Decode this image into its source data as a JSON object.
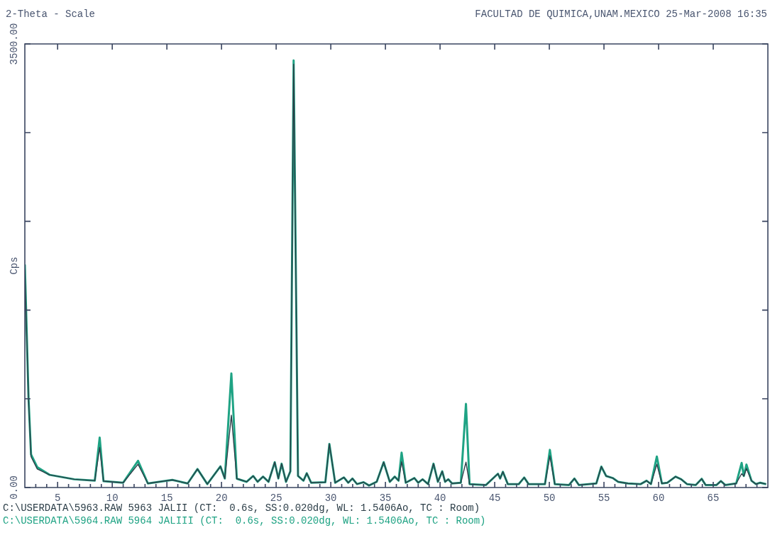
{
  "chart_data": {
    "type": "line",
    "title": "FACULTAD DE QUIMICA,UNAM.MEXICO 25-Mar-2008 16:35",
    "xlabel": "2-Theta - Scale",
    "ylabel": "Cps",
    "x": [
      2.0,
      2.34,
      2.57,
      3.14,
      4.27,
      6.52,
      8.4,
      8.85,
      9.2,
      11.0,
      12.36,
      13.26,
      15.5,
      16.9,
      17.8,
      18.7,
      19.9,
      20.3,
      20.9,
      21.4,
      22.3,
      22.9,
      23.3,
      23.8,
      24.3,
      24.87,
      25.2,
      25.5,
      25.9,
      26.3,
      26.6,
      27.0,
      27.5,
      27.8,
      28.2,
      29.5,
      29.87,
      30.4,
      31.2,
      31.6,
      31.98,
      32.4,
      33.0,
      33.5,
      34.2,
      34.84,
      35.4,
      35.85,
      36.2,
      36.48,
      36.86,
      37.65,
      38.0,
      38.4,
      38.9,
      39.4,
      39.8,
      40.2,
      40.46,
      40.75,
      41.1,
      41.9,
      42.37,
      42.7,
      44.2,
      45.3,
      45.5,
      45.75,
      46.2,
      47.2,
      47.7,
      48.1,
      49.6,
      50.05,
      50.5,
      51.8,
      52.3,
      52.7,
      54.3,
      54.76,
      55.2,
      55.8,
      56.3,
      57.2,
      58.36,
      58.9,
      59.3,
      59.84,
      60.3,
      60.8,
      61.55,
      62.07,
      62.6,
      63.4,
      63.94,
      64.3,
      65.3,
      65.7,
      66.1,
      67.1,
      67.6,
      67.8,
      68.04,
      68.5,
      68.9,
      69.3,
      69.84
    ],
    "series": [
      {
        "name": "C:\\USERDATA\\5963.RAW 5963 JALII (CT:  0.6s, SS:0.020dg, WL: 1.5406Ao, TC : Room)",
        "color": "#2c3e48",
        "values": [
          1720,
          690,
          243,
          146,
          100,
          65,
          54,
          316,
          50,
          38,
          184,
          32,
          60,
          32,
          146,
          27,
          167,
          71,
          570,
          70,
          45,
          91,
          45,
          86,
          45,
          200,
          71,
          188,
          45,
          128,
          3340,
          91,
          54,
          113,
          38,
          42,
          344,
          38,
          80,
          38,
          71,
          27,
          42,
          16,
          45,
          200,
          45,
          86,
          54,
          203,
          38,
          75,
          38,
          65,
          27,
          188,
          45,
          128,
          45,
          65,
          32,
          38,
          200,
          27,
          20,
          109,
          71,
          124,
          27,
          27,
          79,
          27,
          27,
          250,
          27,
          20,
          71,
          20,
          32,
          165,
          91,
          75,
          45,
          32,
          27,
          54,
          27,
          184,
          32,
          38,
          86,
          65,
          27,
          20,
          69,
          20,
          20,
          51,
          20,
          32,
          109,
          91,
          150,
          54,
          27,
          38,
          27
        ]
      },
      {
        "name": "C:\\USERDATA\\5964.RAW 5964 JALIII (CT:  0.6s, SS:0.020dg, WL: 1.5406Ao, TC : Room)",
        "color": "#1fa384",
        "values": [
          1760,
          700,
          260,
          160,
          100,
          65,
          54,
          394,
          50,
          38,
          211,
          32,
          60,
          32,
          146,
          27,
          167,
          71,
          900,
          70,
          45,
          91,
          45,
          86,
          45,
          200,
          71,
          188,
          45,
          128,
          3370,
          91,
          54,
          113,
          38,
          42,
          344,
          38,
          80,
          38,
          71,
          27,
          42,
          16,
          45,
          200,
          45,
          86,
          54,
          275,
          38,
          75,
          38,
          65,
          27,
          188,
          45,
          128,
          45,
          65,
          32,
          38,
          660,
          27,
          20,
          109,
          71,
          124,
          27,
          27,
          79,
          27,
          27,
          297,
          27,
          20,
          71,
          20,
          32,
          165,
          91,
          75,
          45,
          32,
          27,
          54,
          27,
          245,
          32,
          38,
          86,
          65,
          27,
          20,
          69,
          20,
          20,
          51,
          20,
          32,
          194,
          91,
          181,
          54,
          27,
          38,
          27
        ]
      }
    ],
    "xlim": [
      2,
      70
    ],
    "ylim": [
      0,
      3500
    ],
    "xticks": [
      {
        "value": 3,
        "label": null
      },
      {
        "value": 4,
        "label": null
      },
      5,
      {
        "value": 6,
        "label": null
      },
      {
        "value": 7,
        "label": null
      },
      {
        "value": 8,
        "label": null
      },
      {
        "value": 9,
        "label": null
      },
      10,
      {
        "value": 11,
        "label": null
      },
      {
        "value": 12,
        "label": null
      },
      {
        "value": 13,
        "label": null
      },
      {
        "value": 14,
        "label": null
      },
      15,
      {
        "value": 16,
        "label": null
      },
      {
        "value": 17,
        "label": null
      },
      {
        "value": 18,
        "label": null
      },
      {
        "value": 19,
        "label": null
      },
      20,
      {
        "value": 21,
        "label": null
      },
      {
        "value": 22,
        "label": null
      },
      {
        "value": 23,
        "label": null
      },
      {
        "value": 24,
        "label": null
      },
      25,
      {
        "value": 26,
        "label": null
      },
      {
        "value": 27,
        "label": null
      },
      {
        "value": 28,
        "label": null
      },
      {
        "value": 29,
        "label": null
      },
      30,
      {
        "value": 31,
        "label": null
      },
      {
        "value": 32,
        "label": null
      },
      {
        "value": 33,
        "label": null
      },
      {
        "value": 34,
        "label": null
      },
      35,
      {
        "value": 36,
        "label": null
      },
      {
        "value": 37,
        "label": null
      },
      {
        "value": 38,
        "label": null
      },
      {
        "value": 39,
        "label": null
      },
      40,
      {
        "value": 41,
        "label": null
      },
      {
        "value": 42,
        "label": null
      },
      {
        "value": 43,
        "label": null
      },
      {
        "value": 44,
        "label": null
      },
      45,
      {
        "value": 46,
        "label": null
      },
      {
        "value": 47,
        "label": null
      },
      {
        "value": 48,
        "label": null
      },
      {
        "value": 49,
        "label": null
      },
      50,
      {
        "value": 51,
        "label": null
      },
      {
        "value": 52,
        "label": null
      },
      {
        "value": 53,
        "label": null
      },
      {
        "value": 54,
        "label": null
      },
      55,
      {
        "value": 56,
        "label": null
      },
      {
        "value": 57,
        "label": null
      },
      {
        "value": 58,
        "label": null
      },
      {
        "value": 59,
        "label": null
      },
      60,
      {
        "value": 61,
        "label": null
      },
      {
        "value": 62,
        "label": null
      },
      {
        "value": 63,
        "label": null
      },
      {
        "value": 64,
        "label": null
      },
      65,
      {
        "value": 66,
        "label": null
      },
      {
        "value": 67,
        "label": null
      },
      {
        "value": 68,
        "label": null
      },
      {
        "value": 69,
        "label": null
      }
    ],
    "yticks": [
      {
        "value": 0,
        "label": "0.00"
      },
      {
        "value": 700,
        "label": null
      },
      {
        "value": 1400,
        "label": null
      },
      {
        "value": 2100,
        "label": null
      },
      {
        "value": 2800,
        "label": null
      },
      {
        "value": 3500,
        "label": "3500.00"
      }
    ],
    "legend": "bottom"
  }
}
